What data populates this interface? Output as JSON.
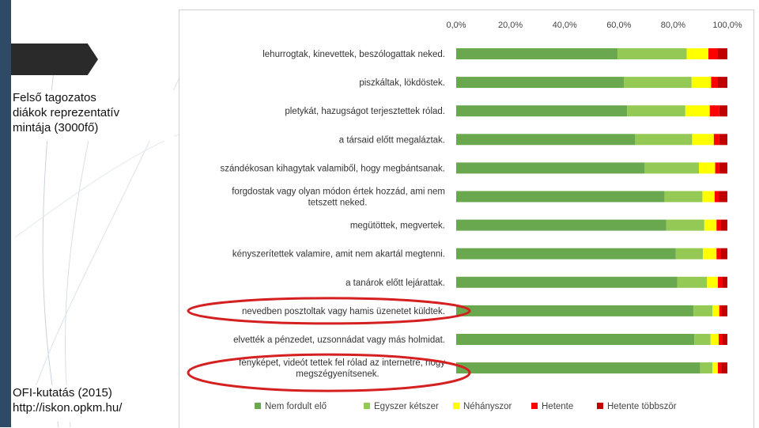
{
  "slide": {
    "sample_note": "Felső tagozatos\ndiákok reprezentatív\nmintája (3000fő)",
    "source_note": "OFI-kutatás (2015)\nhttp://iskon.opkm.hu/"
  },
  "chart_data": {
    "type": "bar",
    "orientation": "horizontal",
    "stacked": true,
    "percent": true,
    "xlim": [
      0,
      100
    ],
    "x_ticks": [
      "0,0%",
      "20,0%",
      "40,0%",
      "60,0%",
      "80,0%",
      "100,0%"
    ],
    "x_axis_position": "top",
    "legend_position": "bottom",
    "categories": [
      "lehurrogtak, kinevettek, beszólogattak neked.",
      "piszkáltak, lökdöstek.",
      "pletykát, hazugságot terjesztettek rólad.",
      "a társaid előtt megaláztak.",
      "szándékosan kihagytak valamiből, hogy megbántsanak.",
      "forgdostak vagy olyan módon értek hozzád, ami nem tetszett neked.",
      "megütöttek, megvertek.",
      "kényszerítettek valamire, amit nem akartál megtenni.",
      "a tanárok előtt lejárattak.",
      "nevedben posztoltak vagy hamis üzenetet küldtek.",
      "elvették a pénzedet, uzsonnádat vagy más holmidat.",
      "fényképet, videót tettek fel rólad az internetre, hogy megszégyenítsenek."
    ],
    "category_lines": [
      [
        "lehurrogtak, kinevettek, beszólogattak neked."
      ],
      [
        "piszkáltak, lökdöstek."
      ],
      [
        "pletykát, hazugságot terjesztettek rólad."
      ],
      [
        "a társaid előtt megaláztak."
      ],
      [
        "szándékosan kihagytak valamiből, hogy megbántsanak."
      ],
      [
        "forgdostak vagy olyan módon értek hozzád, ami nem",
        "tetszett neked."
      ],
      [
        "megütöttek, megvertek."
      ],
      [
        "kényszerítettek valamire, amit nem akartál megtenni."
      ],
      [
        "a tanárok előtt lejárattak."
      ],
      [
        "nevedben posztoltak vagy hamis üzenetet küldtek."
      ],
      [
        "elvették a pénzedet, uzsonnádat vagy más holmidat."
      ],
      [
        "fényképet, videót tettek fel rólad az internetre, hogy",
        "megszégyenítsenek."
      ]
    ],
    "highlighted_categories": [
      9,
      11
    ],
    "highlight_color": "#d42020",
    "series": [
      {
        "name": "Nem fordult elő",
        "color": "#6aa84f",
        "values": [
          59.5,
          61.8,
          63.0,
          66.0,
          69.5,
          76.8,
          77.5,
          81.0,
          81.5,
          87.5,
          87.8,
          90.0
        ]
      },
      {
        "name": "Egyszer kétszer",
        "color": "#93c954",
        "values": [
          25.5,
          25.0,
          21.5,
          21.0,
          20.0,
          14.0,
          14.0,
          10.0,
          11.0,
          7.0,
          6.0,
          4.5
        ]
      },
      {
        "name": "Néhányszor",
        "color": "#ffff00",
        "values": [
          8.0,
          7.2,
          9.0,
          8.0,
          6.0,
          4.5,
          4.5,
          5.0,
          4.0,
          2.5,
          3.0,
          2.0
        ]
      },
      {
        "name": "Hetente",
        "color": "#ff0000",
        "values": [
          3.5,
          2.5,
          3.5,
          2.0,
          1.5,
          1.5,
          1.5,
          1.5,
          1.5,
          0.8,
          1.2,
          1.2
        ]
      },
      {
        "name": "Hetente többször",
        "color": "#c00000",
        "values": [
          3.5,
          3.5,
          3.0,
          3.0,
          3.0,
          3.2,
          2.5,
          2.5,
          2.0,
          2.2,
          2.0,
          2.3
        ]
      }
    ]
  }
}
